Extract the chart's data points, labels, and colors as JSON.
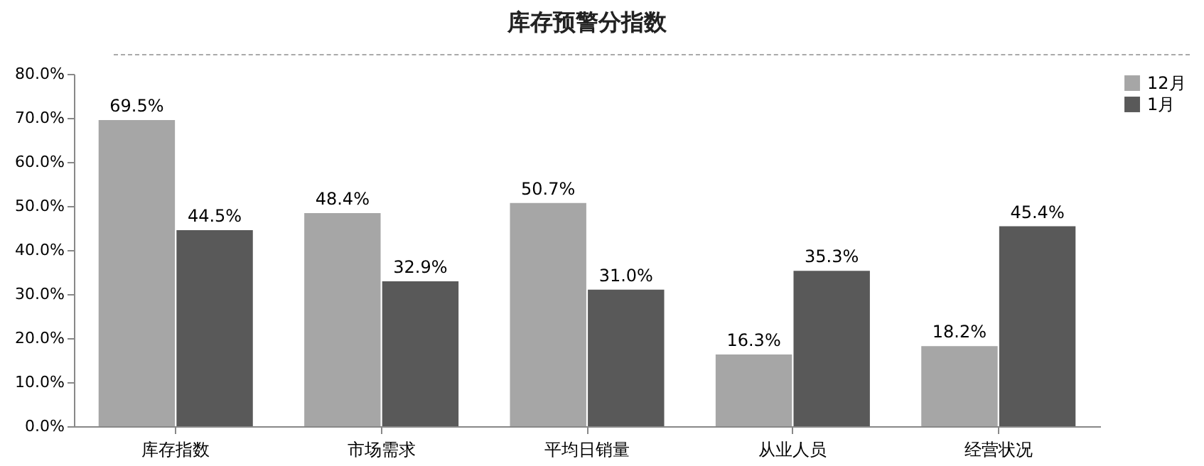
{
  "chart_data": {
    "type": "bar",
    "title": "库存预警分指数",
    "categories": [
      "库存指数",
      "市场需求",
      "平均日销量",
      "从业人员",
      "经营状况"
    ],
    "series": [
      {
        "name": "12月",
        "color": "#a6a6a6",
        "values": [
          69.5,
          48.4,
          50.7,
          16.3,
          18.2
        ],
        "value_labels": [
          "69.5%",
          "48.4%",
          "50.7%",
          "16.3%",
          "18.2%"
        ]
      },
      {
        "name": "1月",
        "color": "#595959",
        "values": [
          44.5,
          32.9,
          31.0,
          35.3,
          45.4
        ],
        "value_labels": [
          "44.5%",
          "32.9%",
          "31.0%",
          "35.3%",
          "45.4%"
        ]
      }
    ],
    "ylim": [
      0,
      80
    ],
    "yticks": [
      {
        "value": 0,
        "label": "0.0%"
      },
      {
        "value": 10,
        "label": "10.0%"
      },
      {
        "value": 20,
        "label": "20.0%"
      },
      {
        "value": 30,
        "label": "30.0%"
      },
      {
        "value": 40,
        "label": "40.0%"
      },
      {
        "value": 50,
        "label": "50.0%"
      },
      {
        "value": 60,
        "label": "60.0%"
      },
      {
        "value": 70,
        "label": "70.0%"
      },
      {
        "value": 80,
        "label": "80.0%"
      }
    ],
    "grid": false,
    "legend": "right"
  }
}
